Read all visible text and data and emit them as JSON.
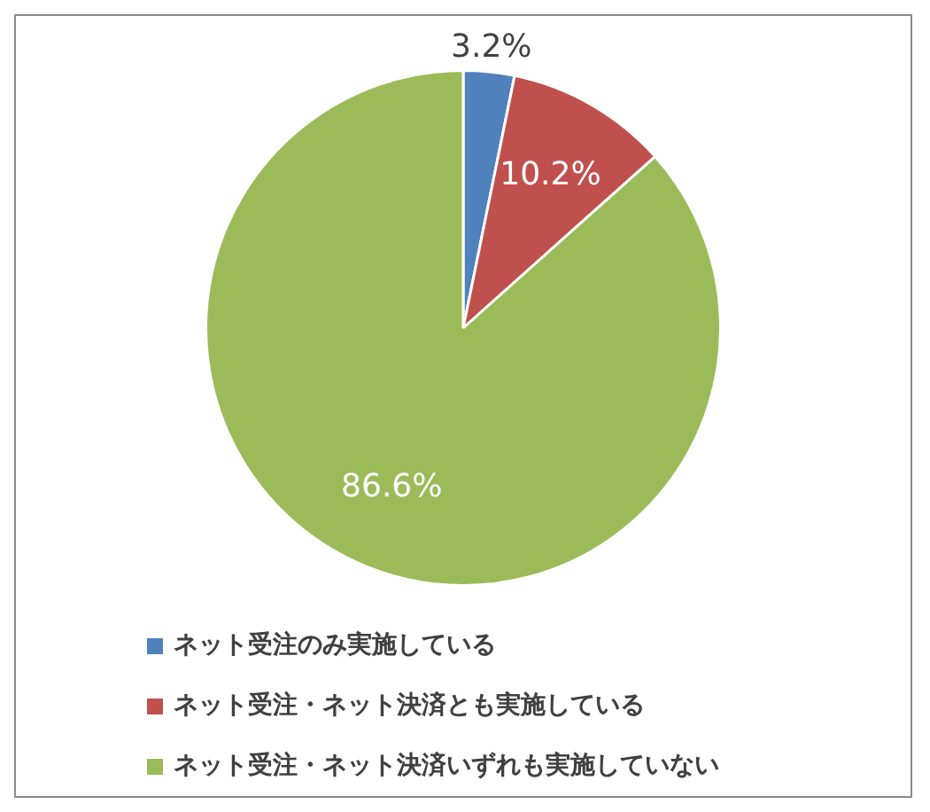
{
  "chart_data": {
    "type": "pie",
    "categories": [
      "ネット受注のみ実施している",
      "ネット受注・ネット決済とも実施している",
      "ネット受注・ネット決済いずれも実施していない"
    ],
    "values": [
      3.2,
      10.2,
      86.6
    ],
    "colors": [
      "#4f81bd",
      "#c0504d",
      "#9bbb59"
    ],
    "value_labels": [
      "3.2%",
      "10.2%",
      "86.6%"
    ],
    "legend": "bottom"
  }
}
